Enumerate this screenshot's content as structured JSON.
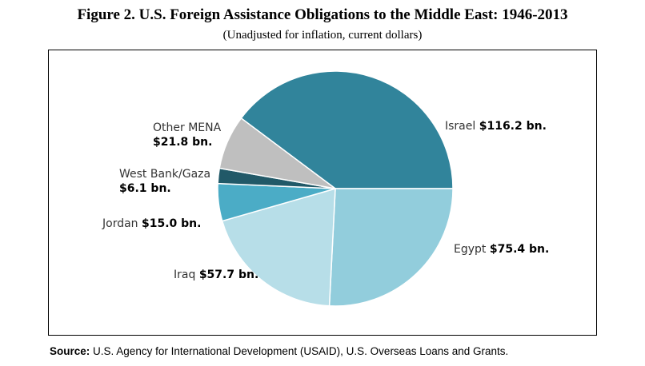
{
  "title": "Figure 2. U.S. Foreign Assistance Obligations to the Middle East: 1946-2013",
  "subtitle": "(Unadjusted for inflation, current dollars)",
  "source": {
    "label": "Source:",
    "text": "U.S. Agency for International Development (USAID), U.S. Overseas Loans and Grants."
  },
  "chart_data": {
    "type": "pie",
    "title": "Figure 2. U.S. Foreign Assistance Obligations to the Middle East: 1946-2013",
    "subtitle": "(Unadjusted for inflation, current dollars)",
    "unit": "$ bn",
    "slices": [
      {
        "label": "Israel",
        "value": 116.2,
        "display": "$116.2 bn.",
        "color": "#31849b"
      },
      {
        "label": "Egypt",
        "value": 75.4,
        "display": "$75.4 bn.",
        "color": "#92cddc"
      },
      {
        "label": "Iraq",
        "value": 57.7,
        "display": "$57.7 bn.",
        "color": "#b7dee8"
      },
      {
        "label": "Jordan",
        "value": 15.0,
        "display": "$15.0 bn.",
        "color": "#4bacc6"
      },
      {
        "label": "West Bank/Gaza",
        "value": 6.1,
        "display": "$6.1 bn.",
        "color": "#215968"
      },
      {
        "label": "Other MENA",
        "value": 21.8,
        "display": "$21.8 bn.",
        "color": "#bfbfbf"
      }
    ]
  }
}
